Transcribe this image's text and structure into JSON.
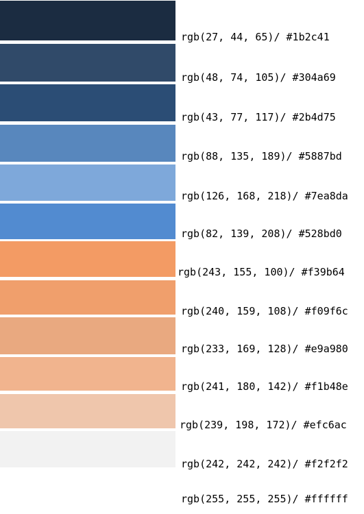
{
  "swatches": [
    {
      "color": "#1b2c41",
      "label": "rgb(27, 44, 65)/ #1b2c41"
    },
    {
      "color": "#304a69",
      "label": "rgb(48, 74, 105)/ #304a69"
    },
    {
      "color": "#2b4d75",
      "label": "rgb(43, 77, 117)/ #2b4d75"
    },
    {
      "color": "#5887bd",
      "label": "rgb(88, 135, 189)/ #5887bd"
    },
    {
      "color": "#7ea8da",
      "label": "rgb(126, 168, 218)/ #7ea8da"
    },
    {
      "color": "#528bd0",
      "label": "rgb(82, 139, 208)/ #528bd0"
    },
    {
      "color": "#f39b64",
      "label": "rgb(243, 155, 100)/ #f39b64"
    },
    {
      "color": "#f09f6c",
      "label": "rgb(240, 159, 108)/ #f09f6c"
    },
    {
      "color": "#e9a980",
      "label": "rgb(233, 169, 128)/ #e9a980"
    },
    {
      "color": "#f1b48e",
      "label": "rgb(241, 180, 142)/ #f1b48e"
    },
    {
      "color": "#efc6ac",
      "label": "rgb(239, 198, 172)/ #efc6ac"
    },
    {
      "color": "#f2f2f2",
      "label": "rgb(242, 242, 242)/ #f2f2f2"
    },
    {
      "color": "#ffffff",
      "label": "rgb(255, 255, 255)/ #ffffff"
    }
  ]
}
